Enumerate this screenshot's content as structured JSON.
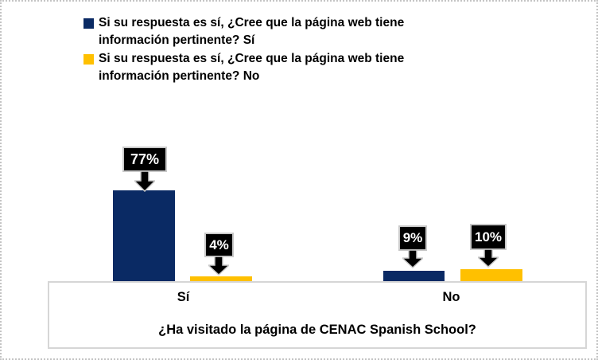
{
  "chart_data": {
    "type": "bar",
    "title": "",
    "categories": [
      "Sí",
      "No"
    ],
    "series": [
      {
        "name": "Si su respuesta es sí, ¿Cree que la página web tiene información pertinente? Sí",
        "color": "#0a2a64",
        "values": [
          77,
          9
        ],
        "labels": [
          "77%",
          "9%"
        ]
      },
      {
        "name": "Si su respuesta es sí, ¿Cree que la página web tiene información pertinente? No",
        "color": "#ffc000",
        "values": [
          4,
          10
        ],
        "labels": [
          "4%",
          "10%"
        ]
      }
    ],
    "xlabel": "¿Ha visitado la página de CENAC Spanish School?",
    "ylabel": "",
    "ylim": [
      0,
      77
    ],
    "grid": false,
    "yaxis_visible": false,
    "legend_position": "top-left",
    "data_label_style": "black-callout-with-down-arrow"
  },
  "legend": {
    "items": [
      {
        "line1": "Si su respuesta es sí, ¿Cree que la página web tiene",
        "line2": "información pertinente? Sí"
      },
      {
        "line1": "Si su respuesta es sí, ¿Cree que la página web tiene",
        "line2": "información pertinente? No"
      }
    ]
  },
  "colors": {
    "series_si": "#0a2a64",
    "series_no": "#ffc000",
    "callout_bg": "#000000",
    "callout_border": "#c9c9c9",
    "callout_text": "#ffffff",
    "axis_box_border": "#d6d6d6",
    "frame_border": "#c3c3c3",
    "background": "#ffffff"
  }
}
